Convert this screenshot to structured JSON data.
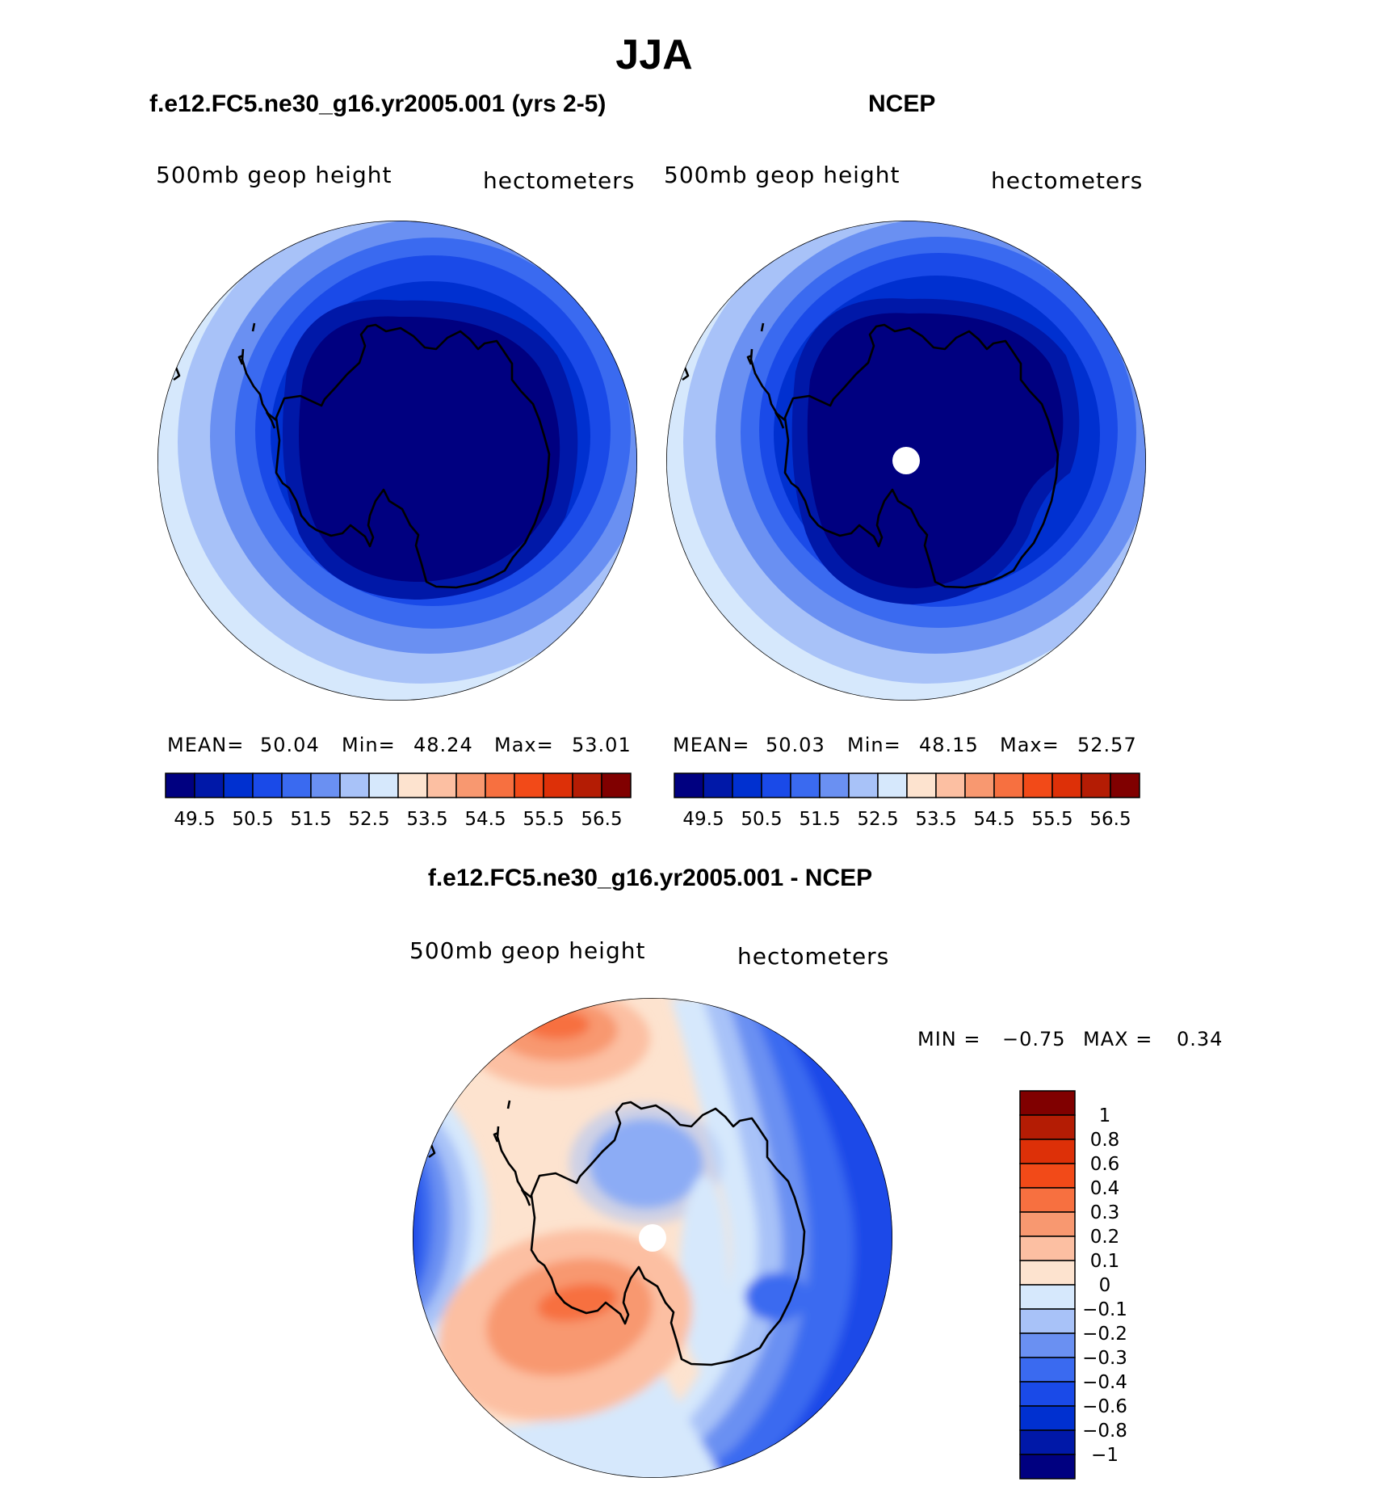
{
  "figure": {
    "title": "JJA",
    "panels": {
      "model": {
        "title": "f.e12.FC5.ne30_g16.yr2005.001 (yrs 2-5)",
        "variable": "500mb geop height",
        "units": "hectometers",
        "mean_label": "MEAN=",
        "mean": "50.04",
        "min_label": "Min=",
        "min": "48.24",
        "max_label": "Max=",
        "max": "53.01"
      },
      "obs": {
        "title": "NCEP",
        "variable": "500mb geop height",
        "units": "hectometers",
        "mean_label": "MEAN=",
        "mean": "50.03",
        "min_label": "Min=",
        "min": "48.15",
        "max_label": "Max=",
        "max": "52.57"
      },
      "diff": {
        "title": "f.e12.FC5.ne30_g16.yr2005.001 - NCEP",
        "variable": "500mb geop height",
        "units": "hectometers",
        "min_label": "MIN =",
        "min": "−0.75",
        "max_label": "MAX =",
        "max": "0.34"
      }
    }
  },
  "chart_data": [
    {
      "type": "heatmap",
      "projection": "south-polar-stereographic",
      "title": "f.e12.FC5.ne30_g16.yr2005.001 (yrs 2-5)",
      "variable": "500mb geop height",
      "units": "hectometers",
      "mean": 50.04,
      "min": 48.24,
      "max": 53.01,
      "levels": [
        49.5,
        50.0,
        50.5,
        51.0,
        51.5,
        52.0,
        52.5,
        53.0,
        53.5,
        54.0,
        54.5,
        55.0,
        55.5,
        56.0,
        56.5
      ],
      "tick_labels": [
        "49.5",
        "50.5",
        "51.5",
        "52.5",
        "53.5",
        "54.5",
        "55.5",
        "56.5"
      ],
      "colors": [
        "#000080",
        "#0018a8",
        "#0030d0",
        "#1a4ae8",
        "#3a6af0",
        "#6a90f2",
        "#a8c2f8",
        "#d6e8fc",
        "#fde3cf",
        "#fcbfa2",
        "#f89870",
        "#f77040",
        "#f24a18",
        "#dd3008",
        "#b41c04",
        "#800000"
      ]
    },
    {
      "type": "heatmap",
      "projection": "south-polar-stereographic",
      "title": "NCEP",
      "variable": "500mb geop height",
      "units": "hectometers",
      "mean": 50.03,
      "min": 48.15,
      "max": 52.57,
      "levels": [
        49.5,
        50.0,
        50.5,
        51.0,
        51.5,
        52.0,
        52.5,
        53.0,
        53.5,
        54.0,
        54.5,
        55.0,
        55.5,
        56.0,
        56.5
      ],
      "tick_labels": [
        "49.5",
        "50.5",
        "51.5",
        "52.5",
        "53.5",
        "54.5",
        "55.5",
        "56.5"
      ],
      "colors": [
        "#000080",
        "#0018a8",
        "#0030d0",
        "#1a4ae8",
        "#3a6af0",
        "#6a90f2",
        "#a8c2f8",
        "#d6e8fc",
        "#fde3cf",
        "#fcbfa2",
        "#f89870",
        "#f77040",
        "#f24a18",
        "#dd3008",
        "#b41c04",
        "#800000"
      ]
    },
    {
      "type": "heatmap",
      "projection": "south-polar-stereographic",
      "title": "f.e12.FC5.ne30_g16.yr2005.001 - NCEP",
      "variable": "500mb geop height",
      "units": "hectometers",
      "min": -0.75,
      "max": 0.34,
      "levels": [
        1,
        0.8,
        0.6,
        0.4,
        0.3,
        0.2,
        0.1,
        0,
        -0.1,
        -0.2,
        -0.3,
        -0.4,
        -0.6,
        -0.8,
        -1
      ],
      "tick_labels": [
        "1",
        "0.8",
        "0.6",
        "0.4",
        "0.3",
        "0.2",
        "0.1",
        "0",
        "−0.1",
        "−0.2",
        "−0.3",
        "−0.4",
        "−0.6",
        "−0.8",
        "−1"
      ],
      "colors": [
        "#800000",
        "#b41c04",
        "#dd3008",
        "#f24a18",
        "#f77040",
        "#f89870",
        "#fcbfa2",
        "#fde3cf",
        "#d6e8fc",
        "#a8c2f8",
        "#6a90f2",
        "#3a6af0",
        "#1a4ae8",
        "#0030d0",
        "#0018a8",
        "#000080"
      ]
    }
  ]
}
